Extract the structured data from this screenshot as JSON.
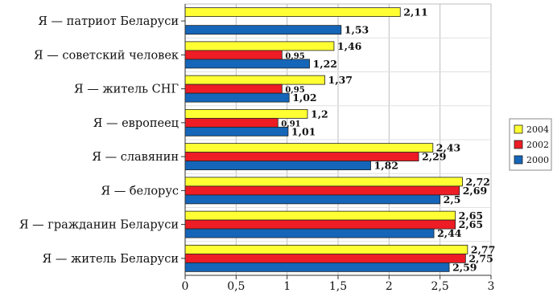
{
  "chart_data": {
    "type": "bar",
    "orientation": "horizontal",
    "categories": [
      "Я — патриот Беларуси",
      "Я — советский человек",
      "Я — житель СНГ",
      "Я — европеец",
      "Я — славянин",
      "Я — белорус",
      "Я — гражданин Беларуси",
      "Я — житель Беларуси"
    ],
    "series": [
      {
        "name": "2004",
        "color": "#ffff33",
        "values": [
          2.11,
          1.46,
          1.37,
          1.2,
          2.43,
          2.72,
          2.65,
          2.77
        ],
        "labels": [
          "2,11",
          "1,46",
          "1,37",
          "1,2",
          "2,43",
          "2,72",
          "2,65",
          "2,77"
        ]
      },
      {
        "name": "2002",
        "color": "#ee1c24",
        "values": [
          null,
          0.95,
          0.95,
          0.91,
          2.29,
          2.69,
          2.65,
          2.75
        ],
        "labels": [
          "",
          "0,95",
          "0,95",
          "0,91",
          "2,29",
          "2,69",
          "2,65",
          "2,75"
        ]
      },
      {
        "name": "2000",
        "color": "#1565b8",
        "values": [
          1.53,
          1.22,
          1.02,
          1.01,
          1.82,
          2.5,
          2.44,
          2.59
        ],
        "labels": [
          "1,53",
          "1,22",
          "1,02",
          "1,01",
          "1,82",
          "2,5",
          "2,44",
          "2,59"
        ]
      }
    ],
    "xlim": [
      0,
      3
    ],
    "x_ticks": [
      0,
      0.5,
      1,
      1.5,
      2,
      2.5,
      3
    ],
    "x_tick_labels": [
      "0",
      "0,5",
      "1",
      "1,5",
      "2",
      "2,5",
      "3"
    ],
    "grid": true,
    "legend_position": "right"
  }
}
